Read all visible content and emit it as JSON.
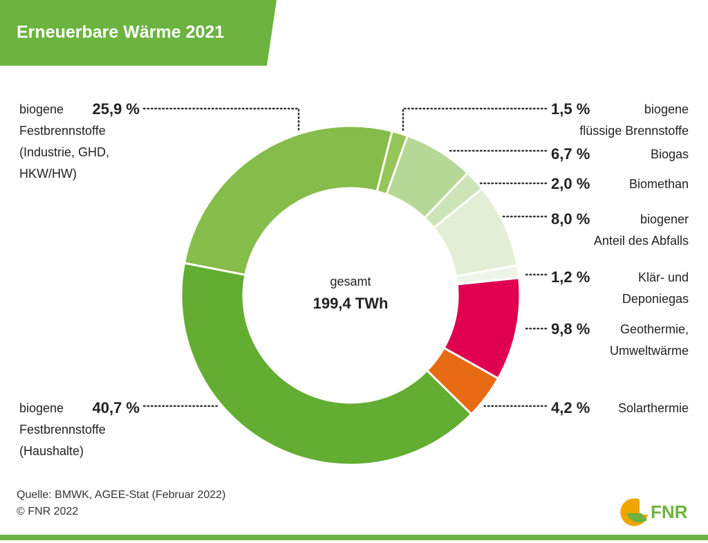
{
  "chart_data": {
    "type": "pie",
    "title": "Erneuerbare Wärme 2021",
    "center_label": "gesamt",
    "center_value": "199,4 TWh",
    "categories": [
      "biogene\nFestbrennstoffe\n(Industrie, GHD,\nHKW/HW)",
      "biogene\nflüssige Brennstoffe",
      "Biogas",
      "Biomethan",
      "biogener\nAnteil des Abfalls",
      "Klär- und\nDeponiegas",
      "Geothermie,\nUmweltwärme",
      "Solarthermie",
      "biogene\nFestbrennstoffe\n(Haushalte)"
    ],
    "values": [
      25.9,
      1.5,
      6.7,
      2.0,
      8.0,
      1.2,
      9.8,
      4.2,
      40.7
    ],
    "value_labels": [
      "25,9 %",
      "1,5 %",
      "6,7 %",
      "2,0 %",
      "8,0 %",
      "1,2 %",
      "9,8 %",
      "4,2 %",
      "40,7 %"
    ],
    "colors": [
      "#86bc4a",
      "#96c55a",
      "#b6d896",
      "#cde4b8",
      "#e2efd6",
      "#eef5e8",
      "#e0004f",
      "#e86a13",
      "#63ad32"
    ],
    "source": "Quelle: BMWK, AGEE-Stat (Februar 2022)\n© FNR 2022",
    "logo": "FNR"
  }
}
